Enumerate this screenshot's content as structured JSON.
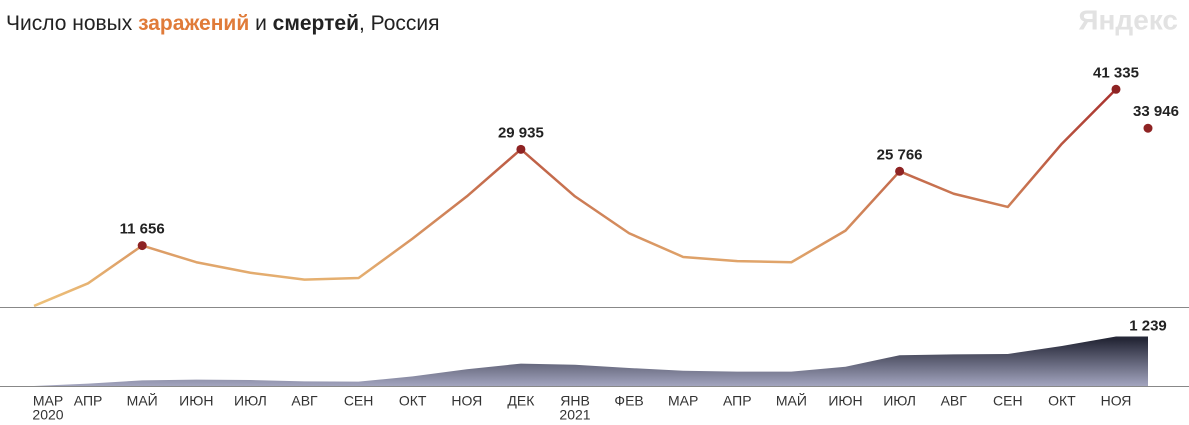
{
  "logo": "Яндекс",
  "chart_data": [
    {
      "type": "line",
      "title_parts": [
        {
          "text": "Число новых ",
          "color": "#222222",
          "bold": false
        },
        {
          "text": "заражений",
          "color": "#e07b39",
          "bold": true
        },
        {
          "text": " и ",
          "color": "#222222",
          "bold": false
        },
        {
          "text": "смертей",
          "color": "#222222",
          "bold": true
        },
        {
          "text": ", Россия",
          "color": "#222222",
          "bold": false
        }
      ],
      "categories": [
        "МАР",
        "АПР",
        "МАЙ",
        "ИЮН",
        "ИЮЛ",
        "АВГ",
        "СЕН",
        "ОКТ",
        "НОЯ",
        "ДЕК",
        "ЯНВ",
        "ФЕВ",
        "МАР",
        "АПР",
        "МАЙ",
        "ИЮН",
        "ИЮЛ",
        "АВГ",
        "СЕН",
        "ОКТ",
        "НОЯ"
      ],
      "year_labels": [
        "2020",
        null,
        null,
        null,
        null,
        null,
        null,
        null,
        null,
        null,
        "2021",
        null,
        null,
        null,
        null,
        null,
        null,
        null,
        null,
        null,
        null
      ],
      "series": [
        {
          "name": "заражений",
          "color_low": "#eec27a",
          "color_high": "#a52a2a",
          "values": [
            200,
            4500,
            11656,
            8500,
            6500,
            5200,
            5500,
            13000,
            21000,
            29935,
            21000,
            14000,
            9500,
            8700,
            8500,
            14500,
            25766,
            21500,
            19000,
            31000,
            41335
          ]
        }
      ],
      "annotations": [
        {
          "category": 2,
          "value": 11656,
          "label": "11 656"
        },
        {
          "category": 9,
          "value": 29935,
          "label": "29 935"
        },
        {
          "category": 16,
          "value": 25766,
          "label": "25 766"
        },
        {
          "category": 20,
          "value": 41335,
          "label": "41 335"
        },
        {
          "category": 20,
          "value": 33946,
          "label": "33 946"
        }
      ],
      "ylim": [
        0,
        45000
      ]
    },
    {
      "type": "area",
      "series": [
        {
          "name": "смертей",
          "color_low": "#a3a5bf",
          "color_high": "#262838",
          "values": [
            1,
            60,
            140,
            160,
            150,
            115,
            110,
            240,
            420,
            560,
            530,
            450,
            380,
            360,
            360,
            480,
            770,
            790,
            800,
            1000,
            1239
          ]
        }
      ],
      "annotations": [
        {
          "category": 20,
          "value": 1239,
          "label": "1 239"
        }
      ],
      "ylim": [
        0,
        1400
      ]
    }
  ]
}
